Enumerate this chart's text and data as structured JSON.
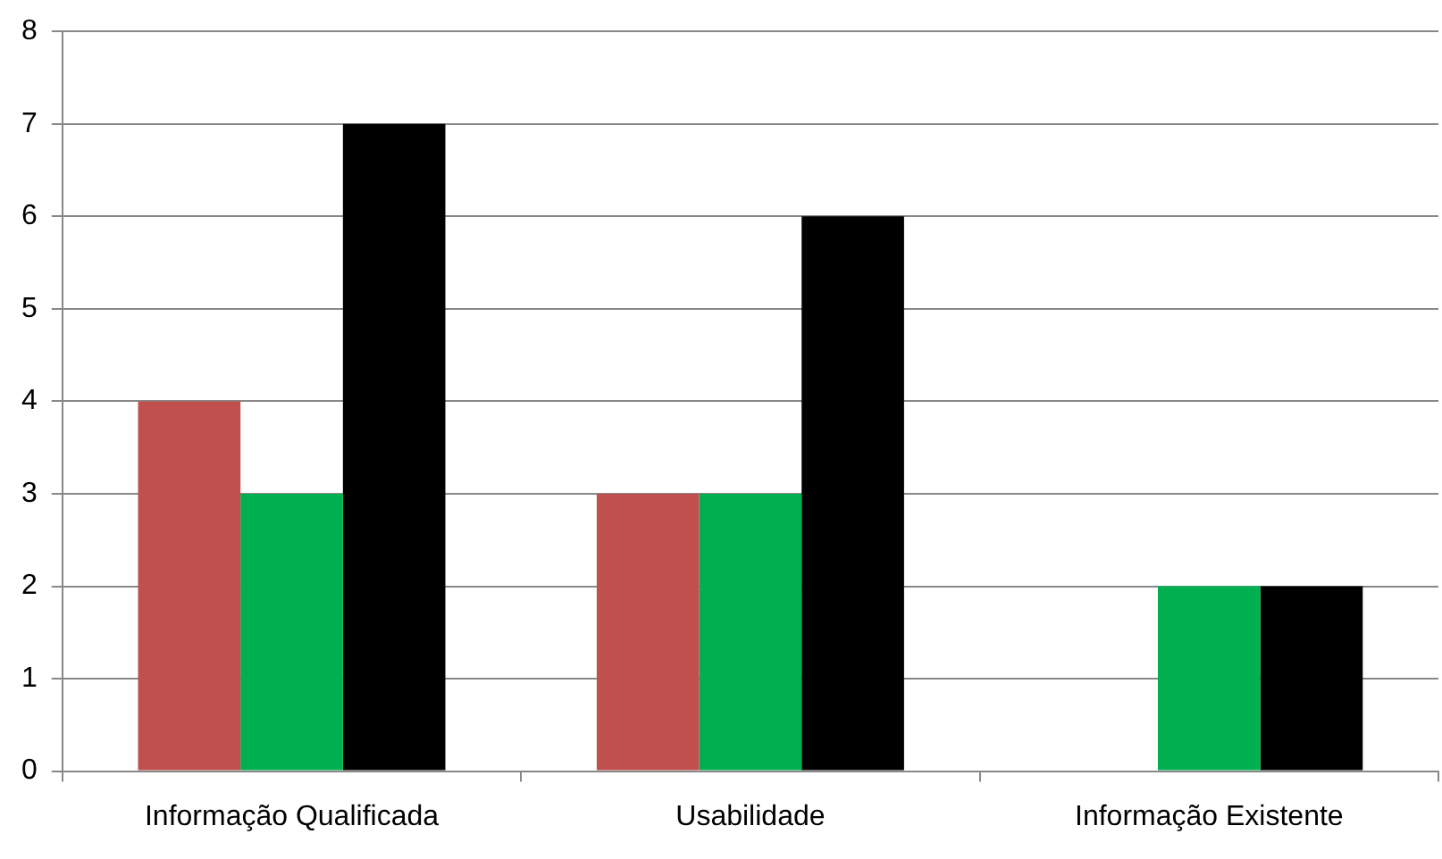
{
  "chart_data": {
    "type": "bar",
    "categories": [
      "Informação Qualificada",
      "Usabilidade",
      "Informação Existente"
    ],
    "series": [
      {
        "color": "#c0504d",
        "values": [
          4,
          3,
          0
        ]
      },
      {
        "color": "#00b050",
        "values": [
          3,
          3,
          2
        ]
      },
      {
        "color": "#000000",
        "values": [
          7,
          6,
          2
        ]
      }
    ],
    "ylim": [
      0,
      8
    ],
    "yticks": [
      0,
      1,
      2,
      3,
      4,
      5,
      6,
      7,
      8
    ],
    "grid": "y",
    "legend": false
  }
}
